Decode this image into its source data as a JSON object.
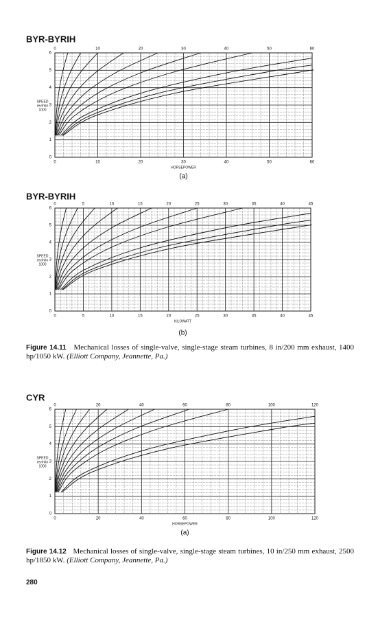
{
  "chart_data": [
    {
      "type": "line",
      "title": "BYR-BYRIH",
      "x_label": "HORSEPOWER",
      "y_label": [
        "SPEED",
        "rev/min",
        "1000"
      ],
      "subcaption": "(a)",
      "xlim": [
        0,
        60
      ],
      "xticks": [
        0,
        10,
        20,
        30,
        40,
        50,
        60
      ],
      "ylim": [
        0,
        6
      ],
      "yticks": [
        0,
        1,
        2,
        3,
        4,
        5,
        6
      ],
      "grid": true,
      "color": "#111111",
      "series": [
        {
          "x": [
            0.06,
            0.3,
            0.9,
            1.8,
            3
          ],
          "values": [
            1.25,
            2.39,
            3.71,
            4.89,
            6
          ]
        },
        {
          "x": [
            0.12,
            0.6,
            1.8,
            3.6,
            6
          ],
          "values": [
            1.25,
            2.39,
            3.71,
            4.89,
            6
          ]
        },
        {
          "x": [
            0.2,
            1,
            3,
            6,
            10
          ],
          "values": [
            1.25,
            2.39,
            3.71,
            4.89,
            6
          ]
        },
        {
          "x": [
            0.32,
            1.6,
            4.8,
            9.6,
            16
          ],
          "values": [
            1.25,
            2.39,
            3.71,
            4.89,
            6
          ]
        },
        {
          "x": [
            0.48,
            2.4,
            7.2,
            14.4,
            24
          ],
          "values": [
            1.25,
            2.39,
            3.71,
            4.89,
            6
          ]
        },
        {
          "x": [
            0.68,
            3.4,
            10.2,
            20.4,
            34
          ],
          "values": [
            1.25,
            2.39,
            3.71,
            4.89,
            6
          ]
        },
        {
          "x": [
            0.92,
            4.6,
            13.8,
            27.6,
            46
          ],
          "values": [
            1.25,
            2.39,
            3.71,
            4.89,
            6
          ]
        },
        {
          "x": [
            1.36,
            6.8,
            20.4,
            40.8,
            60
          ],
          "values": [
            1.25,
            2.39,
            3.71,
            4.89,
            5.7
          ]
        },
        {
          "x": [
            1.64,
            8.2,
            24.6,
            49.2,
            60
          ],
          "values": [
            1.25,
            2.39,
            3.71,
            4.89,
            5.3
          ]
        },
        {
          "x": [
            1.9,
            9.5,
            28.5,
            57,
            60
          ],
          "values": [
            1.25,
            2.39,
            3.71,
            4.89,
            5.0
          ]
        }
      ]
    },
    {
      "type": "line",
      "title": "BYR-BYRIH",
      "x_label": "KILOWATT",
      "y_label": [
        "SPEED",
        "rev/min",
        "1000"
      ],
      "subcaption": "(b)",
      "xlim": [
        0,
        45
      ],
      "xticks": [
        0,
        5,
        10,
        15,
        20,
        25,
        30,
        35,
        40,
        45
      ],
      "ylim": [
        0,
        6
      ],
      "yticks": [
        0,
        1,
        2,
        3,
        4,
        5,
        6
      ],
      "grid": true,
      "color": "#111111",
      "series": [
        {
          "x": [
            0.04,
            0.2,
            0.6,
            1.2,
            2
          ],
          "values": [
            1.25,
            2.39,
            3.71,
            4.89,
            6
          ]
        },
        {
          "x": [
            0.08,
            0.4,
            1.2,
            2.4,
            4
          ],
          "values": [
            1.25,
            2.39,
            3.71,
            4.89,
            6
          ]
        },
        {
          "x": [
            0.14,
            0.7,
            2.1,
            4.2,
            7
          ],
          "values": [
            1.25,
            2.39,
            3.71,
            4.89,
            6
          ]
        },
        {
          "x": [
            0.22,
            1.1,
            3.3,
            6.6,
            11
          ],
          "values": [
            1.25,
            2.39,
            3.71,
            4.89,
            6
          ]
        },
        {
          "x": [
            0.34,
            1.7,
            5.1,
            10.2,
            17
          ],
          "values": [
            1.25,
            2.39,
            3.71,
            4.89,
            6
          ]
        },
        {
          "x": [
            0.5,
            2.5,
            7.5,
            15,
            25
          ],
          "values": [
            1.25,
            2.39,
            3.71,
            4.89,
            6
          ]
        },
        {
          "x": [
            0.66,
            3.3,
            9.9,
            19.8,
            33
          ],
          "values": [
            1.25,
            2.39,
            3.71,
            4.89,
            6
          ]
        },
        {
          "x": [
            1.02,
            5.1,
            15.3,
            30.6,
            45
          ],
          "values": [
            1.25,
            2.39,
            3.71,
            4.89,
            5.7
          ]
        },
        {
          "x": [
            1.24,
            6.2,
            18.6,
            37.2,
            45
          ],
          "values": [
            1.25,
            2.39,
            3.71,
            4.89,
            5.3
          ]
        },
        {
          "x": [
            1.42,
            7.1,
            21.3,
            42.6,
            45
          ],
          "values": [
            1.25,
            2.39,
            3.71,
            4.89,
            5.0
          ]
        }
      ]
    },
    {
      "type": "line",
      "title": "CYR",
      "x_label": "HORSEPOWER",
      "y_label": [
        "SPEED",
        "rev/min",
        "1000"
      ],
      "subcaption": "(a)",
      "xlim": [
        0,
        120
      ],
      "xticks": [
        0,
        20,
        40,
        60,
        80,
        100,
        120
      ],
      "ylim": [
        0,
        6
      ],
      "yticks": [
        0,
        1,
        2,
        3,
        4,
        5,
        6
      ],
      "grid": true,
      "color": "#111111",
      "series": [
        {
          "x": [
            0.1,
            0.5,
            1.5,
            3,
            5
          ],
          "values": [
            1.25,
            2.39,
            3.71,
            4.89,
            6
          ]
        },
        {
          "x": [
            0.2,
            1,
            3,
            6,
            10
          ],
          "values": [
            1.25,
            2.39,
            3.71,
            4.89,
            6
          ]
        },
        {
          "x": [
            0.32,
            1.6,
            4.8,
            9.6,
            16
          ],
          "values": [
            1.25,
            2.39,
            3.71,
            4.89,
            6
          ]
        },
        {
          "x": [
            0.48,
            2.4,
            7.2,
            14.4,
            24
          ],
          "values": [
            1.25,
            2.39,
            3.71,
            4.89,
            6
          ]
        },
        {
          "x": [
            0.68,
            3.4,
            10.2,
            20.4,
            34
          ],
          "values": [
            1.25,
            2.39,
            3.71,
            4.89,
            6
          ]
        },
        {
          "x": [
            0.92,
            4.6,
            13.8,
            27.6,
            46
          ],
          "values": [
            1.25,
            2.39,
            3.71,
            4.89,
            6
          ]
        },
        {
          "x": [
            1.24,
            6.2,
            18.6,
            37.2,
            62
          ],
          "values": [
            1.25,
            2.39,
            3.71,
            4.89,
            6
          ]
        },
        {
          "x": [
            1.6,
            8,
            24,
            48,
            80
          ],
          "values": [
            1.25,
            2.39,
            3.71,
            4.89,
            6
          ]
        },
        {
          "x": [
            2.86,
            14.3,
            42.9,
            85.8,
            120
          ],
          "values": [
            1.25,
            2.39,
            3.71,
            4.89,
            5.6
          ]
        },
        {
          "x": [
            3.42,
            17.1,
            51.3,
            102.6,
            120
          ],
          "values": [
            1.25,
            2.39,
            3.71,
            4.89,
            5.2
          ]
        }
      ]
    }
  ],
  "captions": [
    {
      "label": "Figure 14.11",
      "text": "Mechanical losses of single-valve, single-stage steam turbines, 8 in/200 mm exhaust, 1400 hp/1050 kW.",
      "source": "(Elliott Company, Jeannette, Pa.)"
    },
    {
      "label": "Figure 14.12",
      "text": "Mechanical losses of single-valve, single-stage steam turbines, 10 in/250 mm exhaust, 2500 hp/1850 kW.",
      "source": "(Elliott Company, Jeannette, Pa.)"
    }
  ],
  "page_number": "280"
}
